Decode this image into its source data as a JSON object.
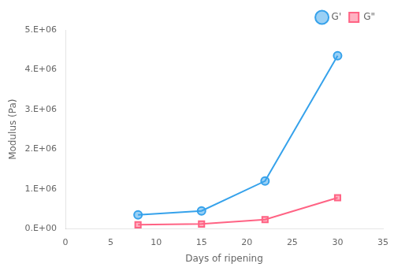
{
  "chart_data": {
    "type": "line",
    "xlabel": "Days of ripening",
    "ylabel": "Modulus (Pa)",
    "x": [
      8,
      15,
      22,
      30
    ],
    "series": [
      {
        "name": "G'",
        "values": [
          350000,
          450000,
          1200000,
          4350000
        ],
        "marker": "circle"
      },
      {
        "name": "G\"",
        "values": [
          100000,
          120000,
          230000,
          780000
        ],
        "marker": "square"
      }
    ],
    "xlim": [
      0,
      35
    ],
    "ylim": [
      0,
      5000000
    ],
    "xticks": [
      0,
      5,
      10,
      15,
      20,
      25,
      30,
      35
    ],
    "yticks": [
      {
        "value": 0,
        "label": "0.E+00"
      },
      {
        "value": 1000000,
        "label": "1.E+06"
      },
      {
        "value": 2000000,
        "label": "2.E+06"
      },
      {
        "value": 3000000,
        "label": "3.E+06"
      },
      {
        "value": 4000000,
        "label": "4.E+06"
      },
      {
        "value": 5000000,
        "label": "5.E+06"
      }
    ],
    "grid": false,
    "legend": "upper right"
  }
}
